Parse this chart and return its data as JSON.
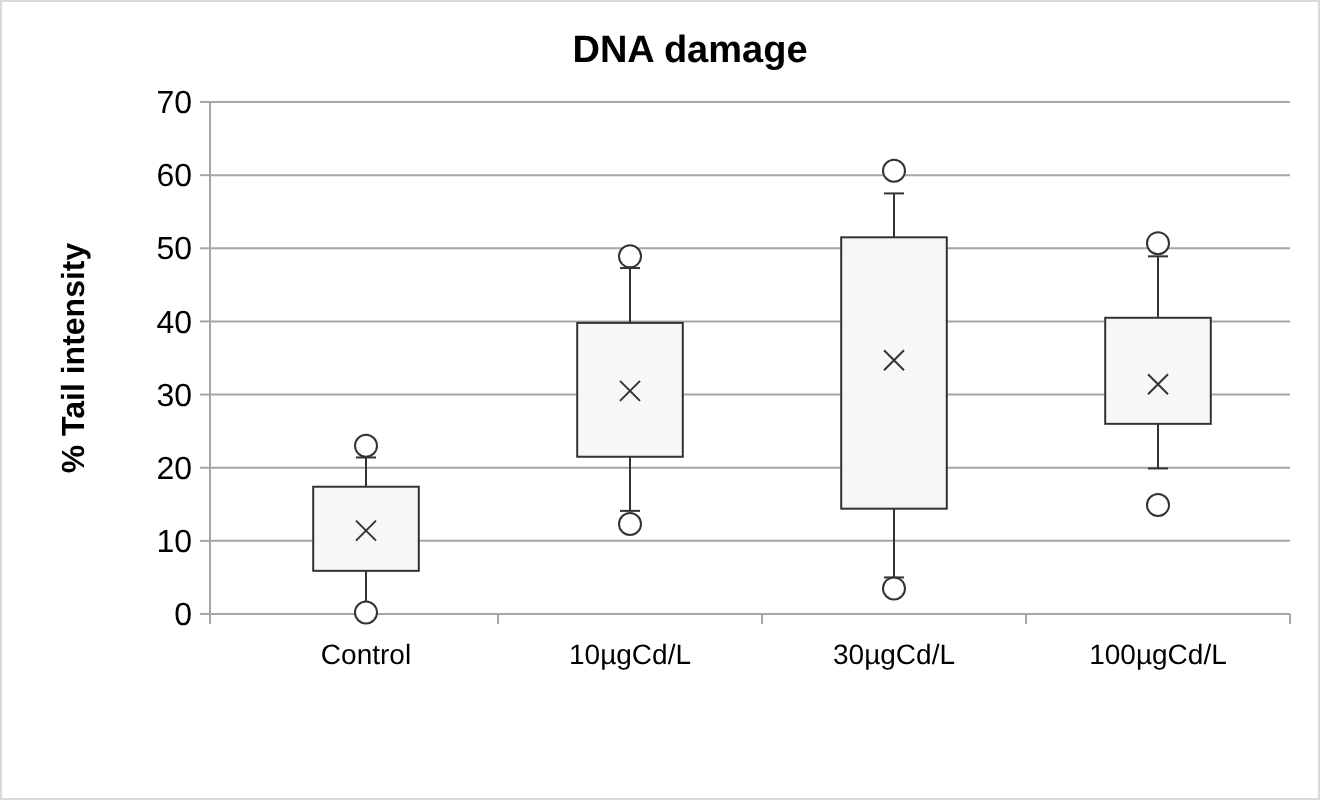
{
  "chart_data": {
    "type": "box",
    "title": "DNA damage",
    "ylabel": "% Tail intensity",
    "categories": [
      "Control",
      "10µgCd/L",
      "30µgCd/L",
      "100µgCd/L"
    ],
    "boxes": [
      {
        "low": 1,
        "q1": 5.9,
        "q3": 17.4,
        "high": 21.4,
        "mean": 11.4,
        "outliers": [
          23,
          0.2
        ]
      },
      {
        "low": 14.1,
        "q1": 21.5,
        "q3": 39.8,
        "high": 47.3,
        "mean": 30.5,
        "outliers": [
          48.9,
          12.3
        ]
      },
      {
        "low": 5,
        "q1": 14.4,
        "q3": 51.5,
        "high": 57.5,
        "mean": 34.7,
        "outliers": [
          60.6,
          3.5
        ]
      },
      {
        "low": 19.9,
        "q1": 26,
        "q3": 40.5,
        "high": 48.9,
        "mean": 31.4,
        "outliers": [
          50.7,
          14.9
        ]
      }
    ],
    "color": "#f7f7f7",
    "ylim": [
      0,
      70
    ],
    "yticks": [
      0,
      10,
      20,
      30,
      40,
      50,
      60,
      70
    ],
    "grid": "y"
  }
}
